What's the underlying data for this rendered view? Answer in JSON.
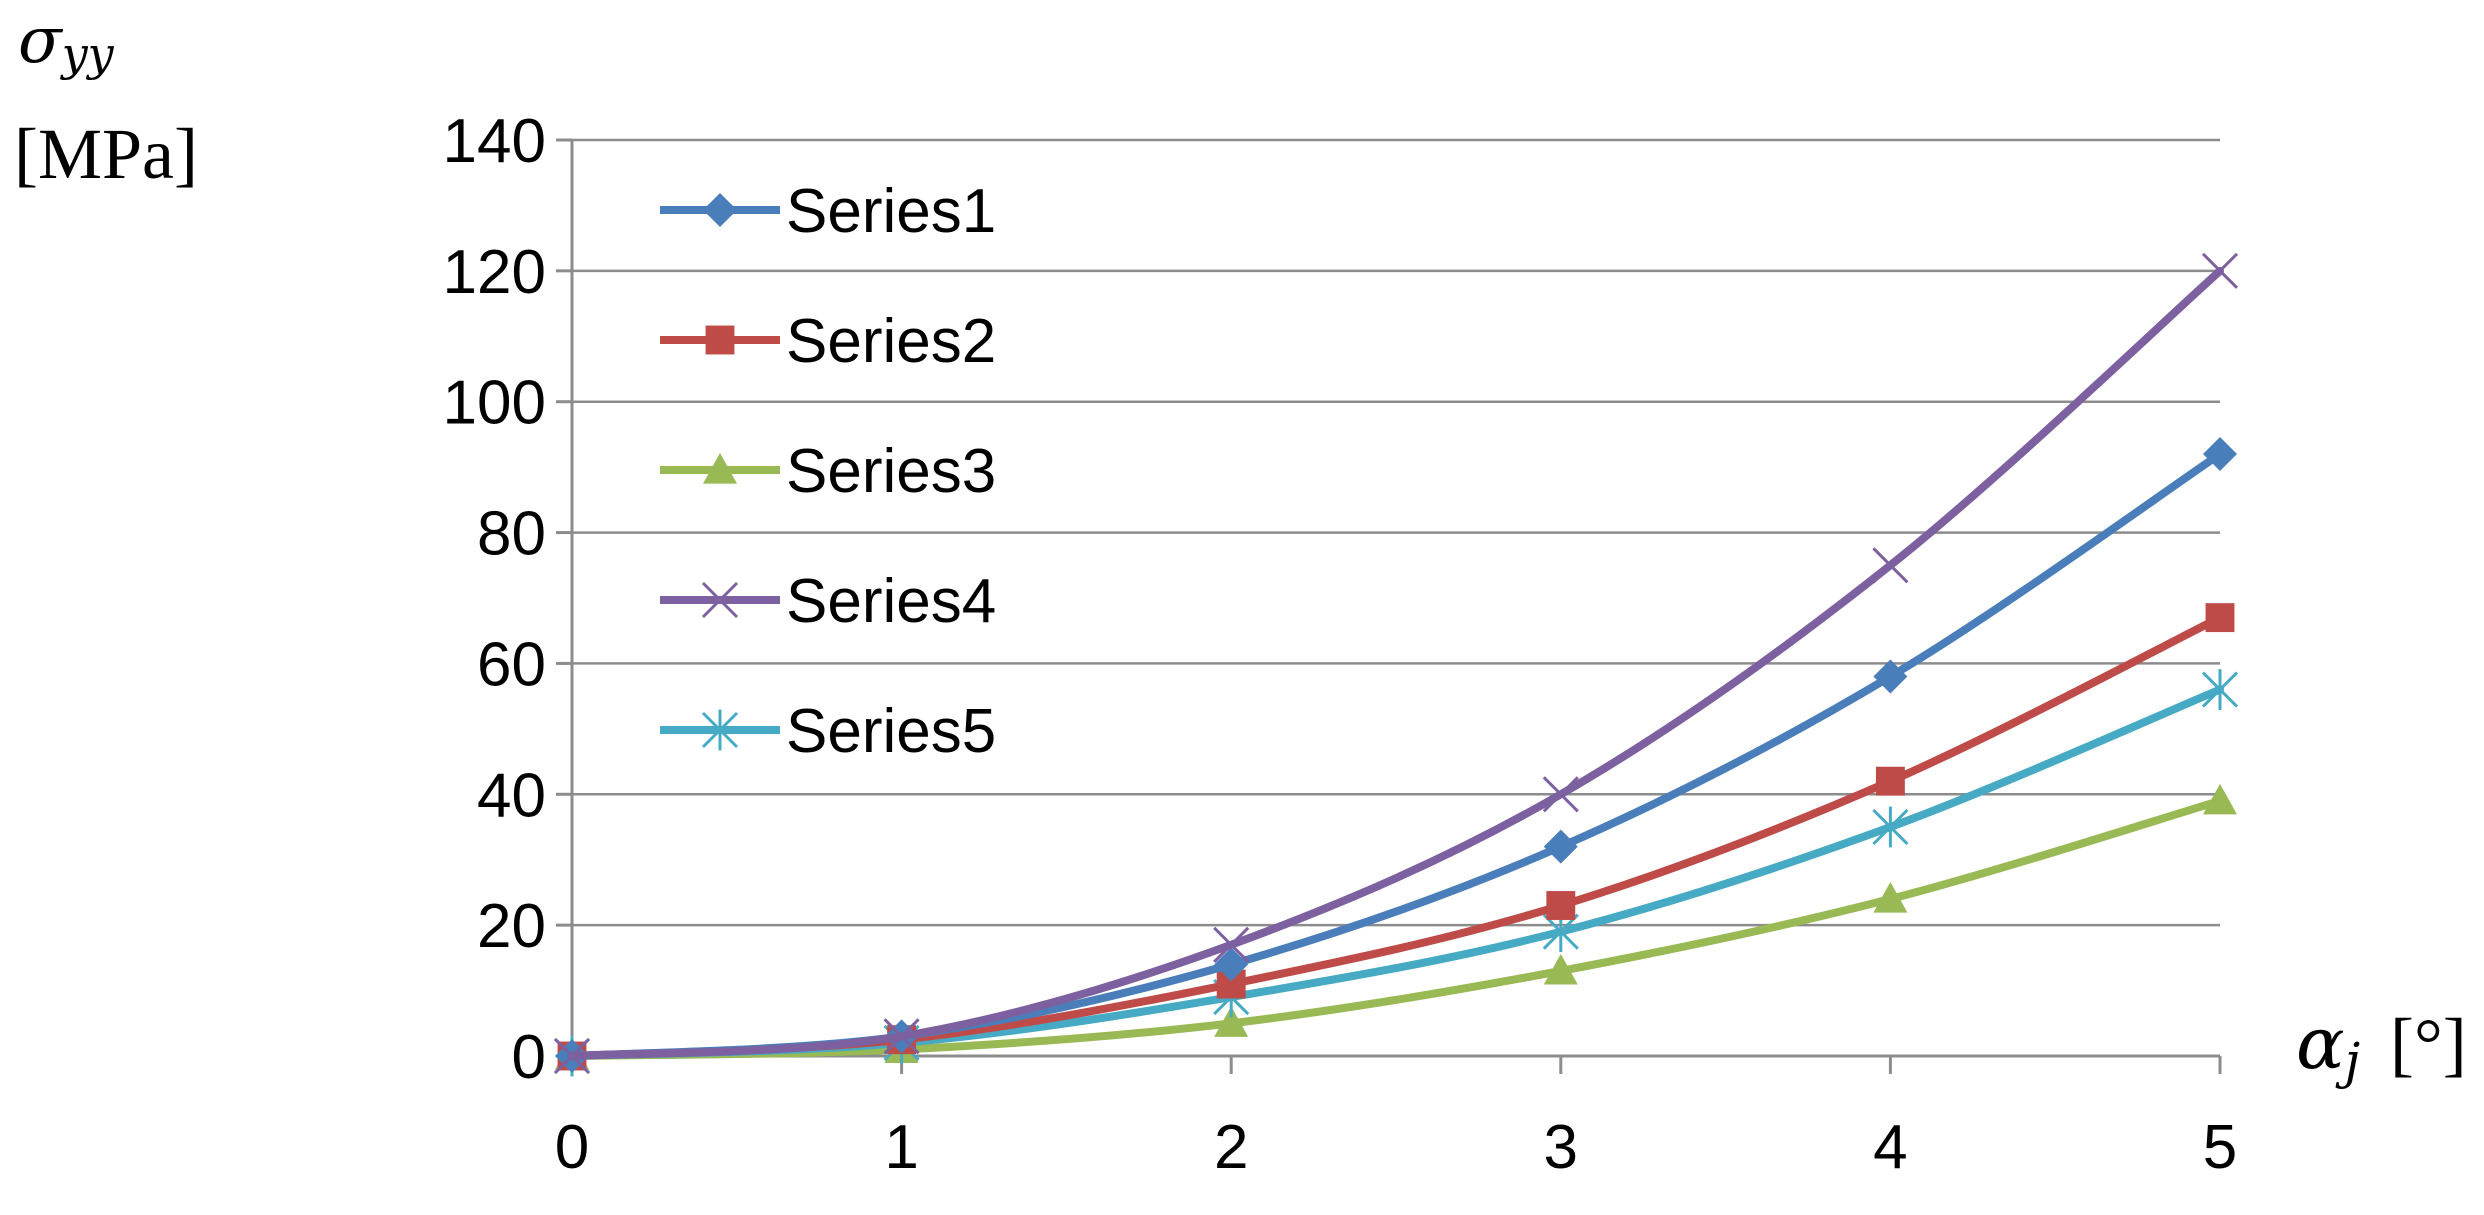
{
  "chart_data": {
    "type": "line",
    "title": "",
    "ylabel": "σ",
    "ylabel_sub": "yy",
    "ylabel_unit": "[MPa]",
    "xlabel": "α",
    "xlabel_sub": "j",
    "xlabel_unit": "[°]",
    "x": [
      0,
      1,
      2,
      3,
      4,
      5
    ],
    "xlim": [
      0,
      5
    ],
    "ylim": [
      0,
      140
    ],
    "y_ticks": [
      0,
      20,
      40,
      60,
      80,
      100,
      120,
      140
    ],
    "x_ticks": [
      0,
      1,
      2,
      3,
      4,
      5
    ],
    "grid": "horizontal",
    "legend_position": "top-left",
    "series": [
      {
        "name": "Series1",
        "color": "#4a7ebb",
        "marker": "diamond",
        "values": [
          0,
          3,
          14,
          32,
          58,
          92
        ]
      },
      {
        "name": "Series2",
        "color": "#be4b48",
        "marker": "square",
        "values": [
          0,
          2.5,
          11,
          23,
          42,
          67
        ]
      },
      {
        "name": "Series3",
        "color": "#98b954",
        "marker": "triangle",
        "values": [
          0,
          1,
          5,
          13,
          24,
          39
        ]
      },
      {
        "name": "Series4",
        "color": "#7d60a0",
        "marker": "x",
        "values": [
          0,
          3,
          17,
          40,
          75,
          120
        ]
      },
      {
        "name": "Series5",
        "color": "#46aac4",
        "marker": "star",
        "values": [
          0,
          2,
          9,
          19,
          35,
          56
        ]
      }
    ]
  }
}
